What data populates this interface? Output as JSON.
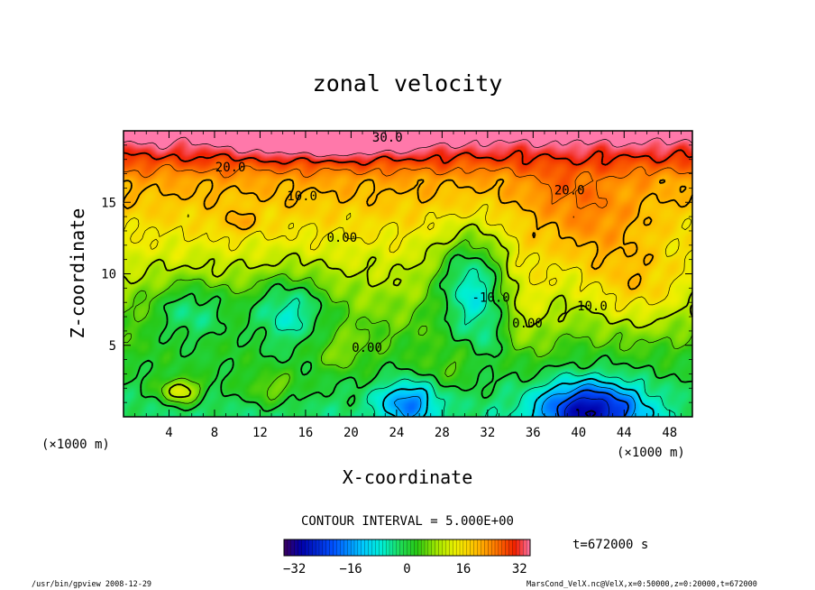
{
  "chart_data": {
    "type": "heatmap",
    "title": "zonal velocity",
    "xlabel": "X-coordinate",
    "ylabel": "Z-coordinate",
    "x_unit_label": "(×1000 m)",
    "x_unit_label_right": "(×1000 m)",
    "xlim": [
      0,
      50
    ],
    "ylim": [
      0,
      20
    ],
    "x_ticks": [
      4,
      8,
      12,
      16,
      20,
      24,
      28,
      32,
      36,
      40,
      44,
      48
    ],
    "y_ticks": [
      5,
      10,
      15
    ],
    "contour_interval_text": "CONTOUR INTERVAL = 5.000E+00",
    "time_text": "t=672000 s",
    "colorbar": {
      "min": -35,
      "max": 35,
      "ticks": [
        -32,
        -16,
        0,
        16,
        32
      ]
    },
    "contour_labels": [
      {
        "text": "30.0",
        "x": 23.2,
        "z": 19.5
      },
      {
        "text": "20.0",
        "x": 9.4,
        "z": 17.4
      },
      {
        "text": "20.0",
        "x": 39.2,
        "z": 15.8
      },
      {
        "text": "10.0",
        "x": 15.7,
        "z": 15.4
      },
      {
        "text": "0.00",
        "x": 19.2,
        "z": 12.5
      },
      {
        "text": "10.0",
        "x": 41.2,
        "z": 7.7
      },
      {
        "text": "-10.0",
        "x": 32.3,
        "z": 8.3
      },
      {
        "text": "0.00",
        "x": 35.5,
        "z": 6.5
      },
      {
        "text": "0.00",
        "x": 21.4,
        "z": 4.8
      }
    ],
    "features": [
      {
        "kind": "jet-max",
        "x": 18,
        "z": 19.3,
        "u": 34
      },
      {
        "kind": "max",
        "x": 40,
        "z": 13.5,
        "u": 23
      },
      {
        "kind": "max",
        "x": 10,
        "z": 13.5,
        "u": 12
      },
      {
        "kind": "min",
        "x": 6,
        "z": 7.5,
        "u": -9
      },
      {
        "kind": "min",
        "x": 14.5,
        "z": 7.5,
        "u": -13
      },
      {
        "kind": "min",
        "x": 30.5,
        "z": 10,
        "u": -14
      },
      {
        "kind": "min",
        "x": 41,
        "z": 1,
        "u": -27
      },
      {
        "kind": "min",
        "x": 25,
        "z": 1,
        "u": -15
      },
      {
        "kind": "max",
        "x": 5,
        "z": 1.8,
        "u": 16
      }
    ]
  },
  "footer": {
    "left": "/usr/bin/gpview  2008-12-29",
    "right": "MarsCond_VelX.nc@VelX,x=0:50000,z=0:20000,t=672000"
  }
}
